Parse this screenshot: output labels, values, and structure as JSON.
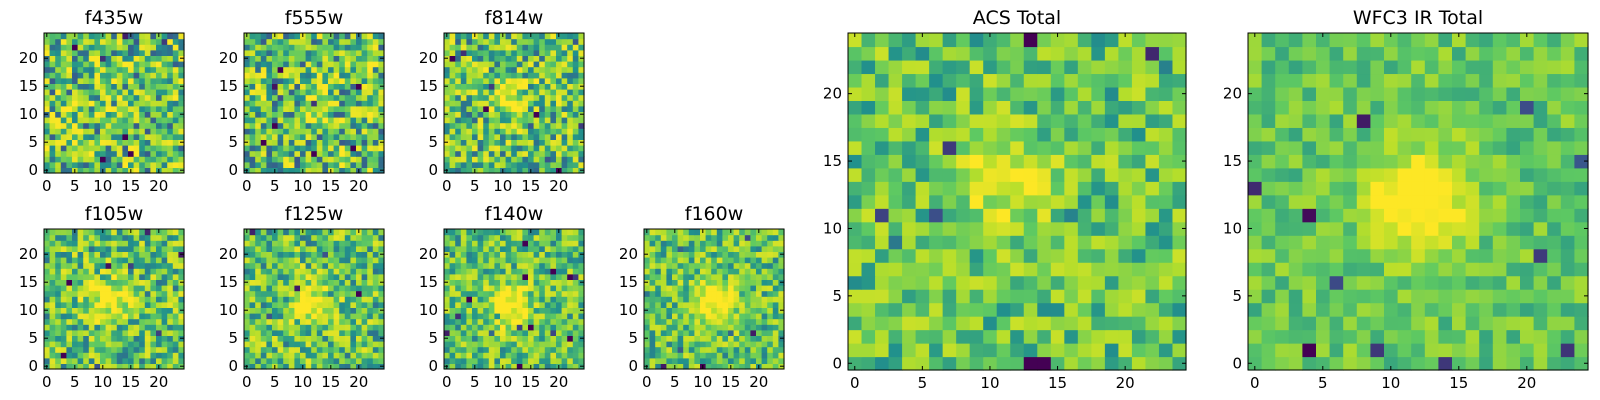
{
  "chart_data": [
    {
      "type": "heatmap",
      "title": "f435w",
      "xlim": [
        0,
        25
      ],
      "ylim": [
        0,
        25
      ],
      "xticks": [
        0,
        5,
        10,
        15,
        20
      ],
      "yticks": [
        0,
        5,
        10,
        15,
        20
      ],
      "blob_center": [
        12,
        12
      ],
      "blob_strength": 0.05,
      "noise": 0.5,
      "seed": 11
    },
    {
      "type": "heatmap",
      "title": "f555w",
      "xlim": [
        0,
        25
      ],
      "ylim": [
        0,
        25
      ],
      "xticks": [
        0,
        5,
        10,
        15,
        20
      ],
      "yticks": [
        0,
        5,
        10,
        15,
        20
      ],
      "blob_center": [
        12,
        12
      ],
      "blob_strength": 0.1,
      "noise": 0.5,
      "seed": 23
    },
    {
      "type": "heatmap",
      "title": "f814w",
      "xlim": [
        0,
        25
      ],
      "ylim": [
        0,
        25
      ],
      "xticks": [
        0,
        5,
        10,
        15,
        20
      ],
      "yticks": [
        0,
        5,
        10,
        15,
        20
      ],
      "blob_center": [
        11,
        13
      ],
      "blob_strength": 0.35,
      "noise": 0.45,
      "seed": 37
    },
    {
      "type": "heatmap",
      "title": "f105w",
      "xlim": [
        0,
        25
      ],
      "ylim": [
        0,
        25
      ],
      "xticks": [
        0,
        5,
        10,
        15,
        20
      ],
      "yticks": [
        0,
        5,
        10,
        15,
        20
      ],
      "blob_center": [
        11,
        12
      ],
      "blob_strength": 0.45,
      "noise": 0.4,
      "seed": 41
    },
    {
      "type": "heatmap",
      "title": "f125w",
      "xlim": [
        0,
        25
      ],
      "ylim": [
        0,
        25
      ],
      "xticks": [
        0,
        5,
        10,
        15,
        20
      ],
      "yticks": [
        0,
        5,
        10,
        15,
        20
      ],
      "blob_center": [
        12,
        11
      ],
      "blob_strength": 0.45,
      "noise": 0.4,
      "seed": 53
    },
    {
      "type": "heatmap",
      "title": "f140w",
      "xlim": [
        0,
        25
      ],
      "ylim": [
        0,
        25
      ],
      "xticks": [
        0,
        5,
        10,
        15,
        20
      ],
      "yticks": [
        0,
        5,
        10,
        15,
        20
      ],
      "blob_center": [
        11,
        11
      ],
      "blob_strength": 0.55,
      "noise": 0.35,
      "seed": 67
    },
    {
      "type": "heatmap",
      "title": "f160w",
      "xlim": [
        0,
        25
      ],
      "ylim": [
        0,
        25
      ],
      "xticks": [
        0,
        5,
        10,
        15,
        20
      ],
      "yticks": [
        0,
        5,
        10,
        15,
        20
      ],
      "blob_center": [
        12,
        12
      ],
      "blob_strength": 0.55,
      "noise": 0.35,
      "seed": 79
    },
    {
      "type": "heatmap",
      "title": "ACS Total",
      "xlim": [
        0,
        25
      ],
      "ylim": [
        0,
        25
      ],
      "xticks": [
        0,
        5,
        10,
        15,
        20
      ],
      "yticks": [
        0,
        5,
        10,
        15,
        20
      ],
      "blob_center": [
        11,
        13
      ],
      "blob_strength": 0.3,
      "noise": 0.3,
      "seed": 97
    },
    {
      "type": "heatmap",
      "title": "WFC3 IR Total",
      "xlim": [
        0,
        25
      ],
      "ylim": [
        0,
        25
      ],
      "xticks": [
        0,
        5,
        10,
        15,
        20
      ],
      "yticks": [
        0,
        5,
        10,
        15,
        20
      ],
      "blob_center": [
        12,
        12
      ],
      "blob_strength": 0.6,
      "noise": 0.2,
      "seed": 131
    }
  ],
  "colormap": [
    "#440154",
    "#3b528b",
    "#21918c",
    "#5ec962",
    "#b5de2b",
    "#fde725"
  ]
}
